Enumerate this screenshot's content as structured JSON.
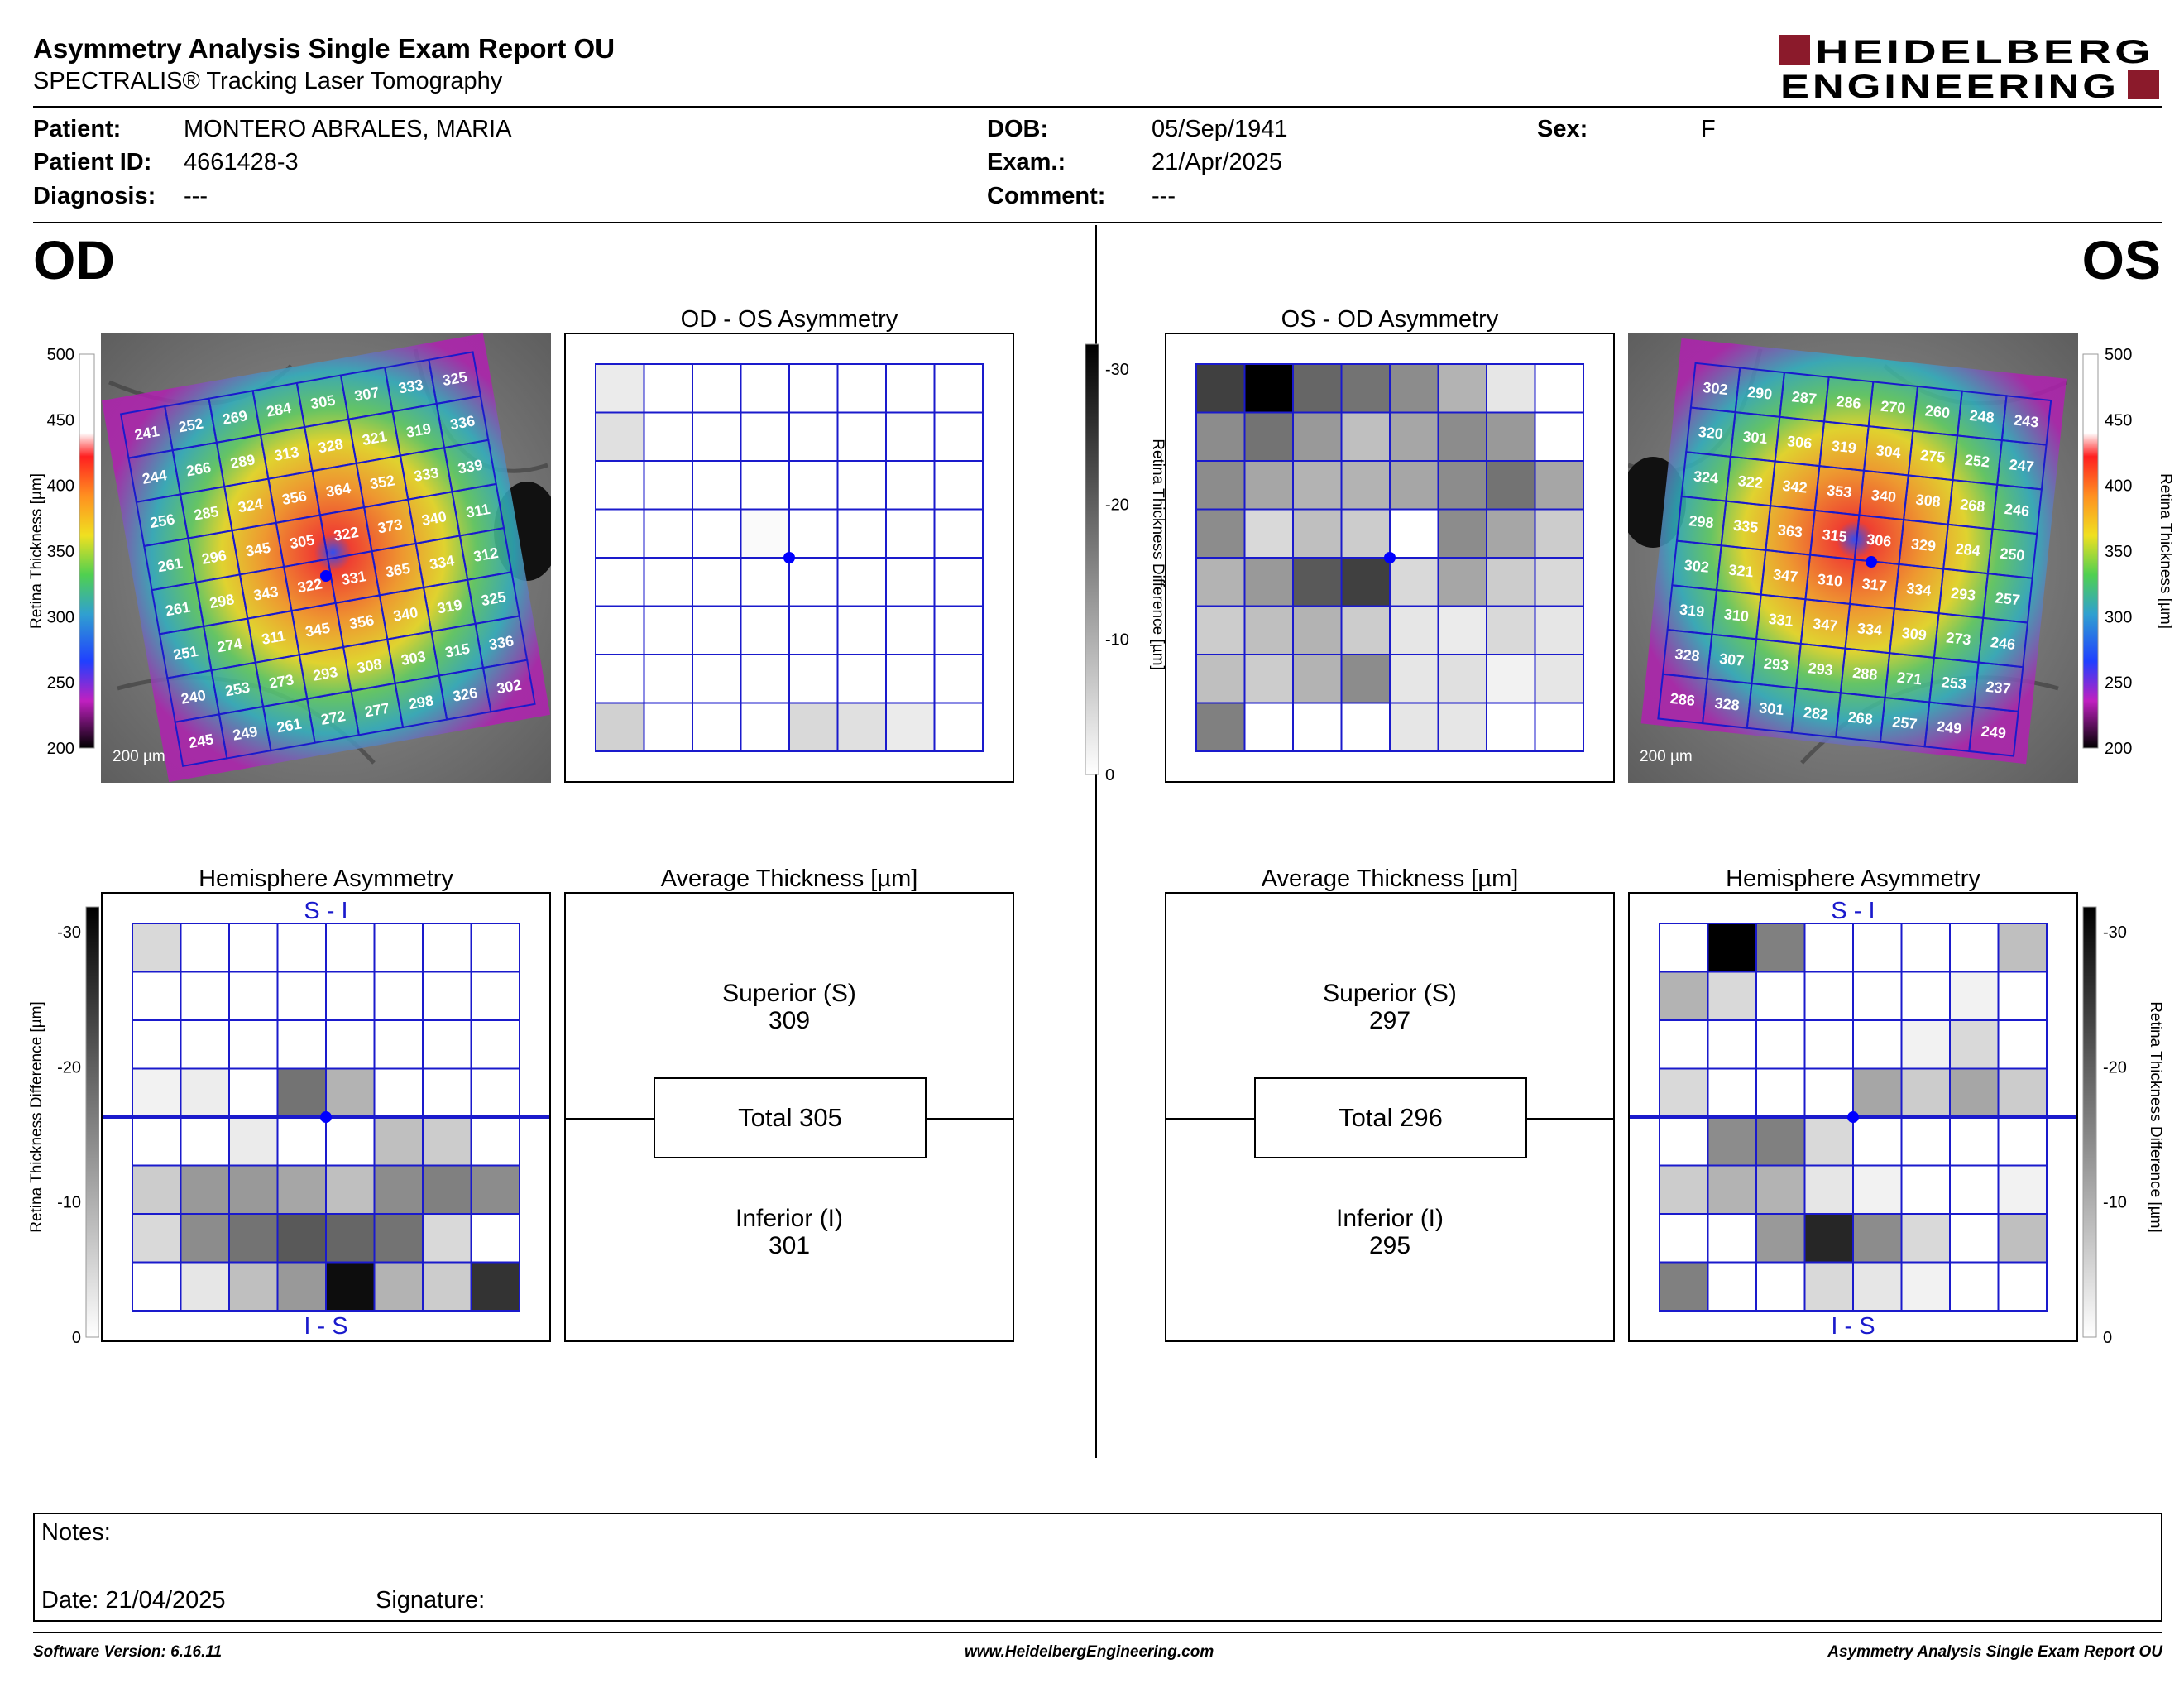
{
  "header": {
    "title": "Asymmetry Analysis Single Exam Report OU",
    "subtitle": "SPECTRALIS® Tracking Laser Tomography",
    "logo_line1": "HEIDELBERG",
    "logo_line2": "ENGINEERING"
  },
  "patient": {
    "patient_label": "Patient:",
    "patient_value": "MONTERO ABRALES, MARIA",
    "id_label": "Patient ID:",
    "id_value": "4661428-3",
    "diagnosis_label": "Diagnosis:",
    "diagnosis_value": "---",
    "dob_label": "DOB:",
    "dob_value": "05/Sep/1941",
    "exam_label": "Exam.:",
    "exam_value": "21/Apr/2025",
    "comment_label": "Comment:",
    "comment_value": "---",
    "sex_label": "Sex:",
    "sex_value": "F"
  },
  "od": {
    "eye_label": "OD",
    "asym_title": "OD - OS Asymmetry",
    "hemi_title": "Hemisphere Asymmetry",
    "avg_title": "Average Thickness [µm]",
    "scale_bar": "200 µm",
    "hemi_top": "S - I",
    "hemi_bottom": "I - S",
    "superior_label": "Superior (S)",
    "superior_value": "309",
    "total_label": "Total 305",
    "inferior_label": "Inferior (I)",
    "inferior_value": "301",
    "thickness_grid": [
      [
        241,
        252,
        269,
        284,
        305,
        307,
        333,
        325
      ],
      [
        244,
        266,
        289,
        313,
        328,
        321,
        319,
        336
      ],
      [
        256,
        285,
        324,
        356,
        364,
        352,
        333,
        339
      ],
      [
        261,
        296,
        345,
        305,
        322,
        373,
        340,
        311
      ],
      [
        261,
        298,
        343,
        322,
        331,
        365,
        334,
        312
      ],
      [
        251,
        274,
        311,
        345,
        356,
        340,
        319,
        325
      ],
      [
        240,
        253,
        273,
        293,
        308,
        303,
        315,
        336
      ],
      [
        245,
        249,
        261,
        272,
        277,
        298,
        326,
        302
      ]
    ],
    "asym_grid": [
      [
        0.08,
        0,
        0,
        0,
        0,
        0,
        0,
        0
      ],
      [
        0.12,
        0,
        0,
        0,
        0,
        0,
        0,
        0
      ],
      [
        0,
        0,
        0,
        0,
        0,
        0,
        0,
        0
      ],
      [
        0,
        0,
        0,
        0.02,
        0,
        0,
        0,
        0
      ],
      [
        0,
        0,
        0,
        0,
        0,
        0,
        0,
        0
      ],
      [
        0,
        0,
        0,
        0,
        0,
        0,
        0,
        0
      ],
      [
        0,
        0,
        0,
        0,
        0,
        0,
        0,
        0
      ],
      [
        0.18,
        0,
        0,
        0,
        0.15,
        0.12,
        0.08,
        0
      ]
    ],
    "hemi_grid": [
      [
        0.15,
        0,
        0,
        0,
        0,
        0,
        0,
        0
      ],
      [
        0,
        0,
        0,
        0,
        0,
        0,
        0,
        0
      ],
      [
        0,
        0,
        0,
        0,
        0,
        0,
        0,
        0
      ],
      [
        0.05,
        0.07,
        0,
        0.55,
        0.3,
        0,
        0,
        0
      ],
      [
        0,
        0,
        0.08,
        0,
        0,
        0.25,
        0.2,
        0
      ],
      [
        0.2,
        0.4,
        0.4,
        0.35,
        0.25,
        0.45,
        0.5,
        0.45
      ],
      [
        0.15,
        0.45,
        0.55,
        0.65,
        0.6,
        0.55,
        0.15,
        0
      ],
      [
        0,
        0.1,
        0.25,
        0.4,
        0.95,
        0.3,
        0.2,
        0.8
      ]
    ]
  },
  "os": {
    "eye_label": "OS",
    "asym_title": "OS - OD Asymmetry",
    "hemi_title": "Hemisphere Asymmetry",
    "avg_title": "Average Thickness [µm]",
    "scale_bar": "200 µm",
    "hemi_top": "S - I",
    "hemi_bottom": "I - S",
    "superior_label": "Superior (S)",
    "superior_value": "297",
    "total_label": "Total 296",
    "inferior_label": "Inferior (I)",
    "inferior_value": "295",
    "thickness_grid": [
      [
        302,
        290,
        287,
        286,
        270,
        260,
        248,
        243
      ],
      [
        320,
        301,
        306,
        319,
        304,
        275,
        252,
        247
      ],
      [
        324,
        322,
        342,
        353,
        340,
        308,
        268,
        246
      ],
      [
        298,
        335,
        363,
        315,
        306,
        329,
        284,
        250
      ],
      [
        302,
        321,
        347,
        310,
        317,
        334,
        293,
        257
      ],
      [
        319,
        310,
        331,
        347,
        334,
        309,
        273,
        246
      ],
      [
        328,
        307,
        293,
        293,
        288,
        271,
        253,
        237
      ],
      [
        286,
        328,
        301,
        282,
        268,
        257,
        249,
        249
      ]
    ],
    "asym_grid": [
      [
        0.75,
        1.0,
        0.6,
        0.55,
        0.45,
        0.3,
        0.1,
        0
      ],
      [
        0.45,
        0.55,
        0.4,
        0.25,
        0.35,
        0.45,
        0.4,
        0
      ],
      [
        0.45,
        0.35,
        0.3,
        0.3,
        0.35,
        0.45,
        0.55,
        0.35
      ],
      [
        0.45,
        0.15,
        0.25,
        0.2,
        0,
        0.45,
        0.35,
        0.2
      ],
      [
        0.3,
        0.4,
        0.65,
        0.75,
        0.15,
        0.35,
        0.2,
        0.15
      ],
      [
        0.2,
        0.25,
        0.3,
        0.2,
        0.1,
        0.08,
        0.15,
        0.1
      ],
      [
        0.25,
        0.2,
        0.3,
        0.45,
        0.1,
        0.12,
        0.05,
        0.1
      ],
      [
        0.5,
        0,
        0,
        0,
        0.1,
        0.1,
        0,
        0
      ]
    ],
    "hemi_grid": [
      [
        0,
        1.0,
        0.5,
        0,
        0,
        0,
        0,
        0.25
      ],
      [
        0.3,
        0.15,
        0,
        0,
        0,
        0,
        0.05,
        0
      ],
      [
        0,
        0,
        0,
        0,
        0,
        0.05,
        0.15,
        0
      ],
      [
        0.15,
        0,
        0,
        0,
        0.35,
        0.2,
        0.35,
        0.2
      ],
      [
        0,
        0.45,
        0.5,
        0.15,
        0,
        0,
        0,
        0
      ],
      [
        0.2,
        0.3,
        0.3,
        0.1,
        0.05,
        0,
        0,
        0.05
      ],
      [
        0,
        0,
        0.4,
        0.85,
        0.45,
        0.15,
        0,
        0.25
      ],
      [
        0.5,
        0,
        0,
        0.15,
        0.1,
        0.05,
        0,
        0
      ]
    ]
  },
  "scales": {
    "thickness_ticks": [
      "500",
      "450",
      "400",
      "350",
      "300",
      "250",
      "200"
    ],
    "thickness_axis_label": "Retina  Thickness [µm]",
    "diff_ticks": [
      "-30",
      "-20",
      "-10",
      "0"
    ],
    "diff_axis_label": "Retina Thickness Difference [µm]"
  },
  "notes": {
    "notes_label": "Notes:",
    "date_label": "Date: 21/04/2025",
    "signature_label": "Signature:"
  },
  "footer": {
    "software": "Software Version: 6.16.11",
    "url": "www.HeidelbergEngineering.com",
    "report": "Asymmetry Analysis Single Exam Report OU"
  },
  "colors": {
    "grid_blue": "#1a1acc",
    "logo_red": "#8b1a2b",
    "center_dot": "#0000ff"
  }
}
